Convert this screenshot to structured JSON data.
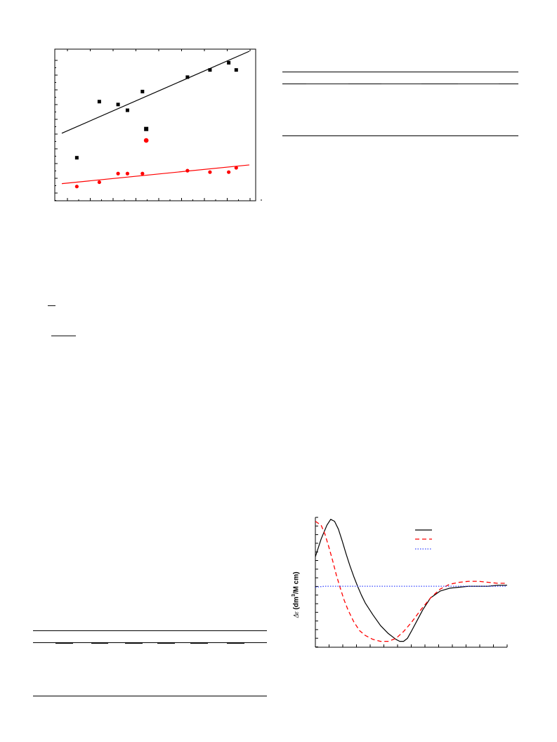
{
  "scatter_chart": {
    "type": "scatter",
    "series": [
      {
        "color": "#000000",
        "marker": "square",
        "points": [
          [
            0.08,
            0.26
          ],
          [
            0.2,
            0.65
          ],
          [
            0.3,
            0.63
          ],
          [
            0.35,
            0.59
          ],
          [
            0.43,
            0.72
          ],
          [
            0.45,
            0.46
          ],
          [
            0.67,
            0.82
          ],
          [
            0.79,
            0.87
          ],
          [
            0.89,
            0.92
          ],
          [
            0.93,
            0.87
          ]
        ],
        "fit": {
          "x": [
            0.0,
            1.0
          ],
          "y": [
            0.43,
            1.0
          ]
        }
      },
      {
        "color": "#ff0000",
        "marker": "circle",
        "points": [
          [
            0.08,
            0.06
          ],
          [
            0.2,
            0.09
          ],
          [
            0.3,
            0.15
          ],
          [
            0.35,
            0.15
          ],
          [
            0.43,
            0.15
          ],
          [
            0.45,
            0.38
          ],
          [
            0.67,
            0.17
          ],
          [
            0.79,
            0.16
          ],
          [
            0.89,
            0.16
          ],
          [
            0.93,
            0.19
          ]
        ],
        "fit": {
          "x": [
            0.0,
            1.0
          ],
          "y": [
            0.08,
            0.21
          ]
        }
      }
    ],
    "xlim": [
      0,
      1
    ],
    "ylim": [
      0,
      1
    ]
  },
  "cd_chart": {
    "type": "line",
    "ylabel_prefix": "Δε",
    "ylabel_main": "(dm",
    "ylabel_sup": "3",
    "ylabel_rest": "/M  cm)",
    "legend_entries": [
      "",
      "",
      ""
    ],
    "series": [
      {
        "color": "#000000",
        "dash": "solid",
        "x": [
          0.0,
          0.03,
          0.06,
          0.08,
          0.1,
          0.12,
          0.14,
          0.16,
          0.18,
          0.2,
          0.22,
          0.24,
          0.26,
          0.3,
          0.34,
          0.38,
          0.42,
          0.44,
          0.46,
          0.48,
          0.5,
          0.53,
          0.56,
          0.6,
          0.65,
          0.7,
          0.75,
          0.8,
          0.85,
          0.9,
          0.95,
          1.0
        ],
        "y": [
          0.3,
          0.48,
          0.62,
          0.68,
          0.66,
          0.58,
          0.46,
          0.33,
          0.21,
          0.1,
          0.0,
          -0.09,
          -0.17,
          -0.29,
          -0.4,
          -0.48,
          -0.54,
          -0.56,
          -0.56,
          -0.53,
          -0.46,
          -0.35,
          -0.24,
          -0.12,
          -0.05,
          -0.02,
          -0.01,
          0.0,
          0.0,
          0.0,
          0.01,
          0.01
        ]
      },
      {
        "color": "#ff0000",
        "dash": "dashed",
        "x": [
          0.0,
          0.03,
          0.05,
          0.07,
          0.09,
          0.11,
          0.13,
          0.15,
          0.17,
          0.2,
          0.23,
          0.26,
          0.3,
          0.34,
          0.38,
          0.42,
          0.46,
          0.5,
          0.55,
          0.6,
          0.65,
          0.7,
          0.75,
          0.8,
          0.85,
          0.9,
          0.95,
          1.0
        ],
        "y": [
          0.66,
          0.62,
          0.53,
          0.4,
          0.26,
          0.11,
          -0.02,
          -0.14,
          -0.24,
          -0.36,
          -0.45,
          -0.5,
          -0.54,
          -0.56,
          -0.56,
          -0.53,
          -0.46,
          -0.37,
          -0.24,
          -0.12,
          -0.03,
          0.02,
          0.04,
          0.05,
          0.05,
          0.04,
          0.03,
          0.03
        ]
      },
      {
        "color": "#3344ff",
        "dash": "dotted",
        "x": [
          0.0,
          0.05,
          0.1,
          0.2,
          0.4,
          0.6,
          0.8,
          1.0
        ],
        "y": [
          -0.01,
          0.0,
          0.0,
          0.0,
          0.0,
          0.0,
          0.0,
          0.0
        ]
      }
    ],
    "xlim": [
      0,
      1
    ],
    "ylim": [
      -0.62,
      0.7
    ]
  }
}
